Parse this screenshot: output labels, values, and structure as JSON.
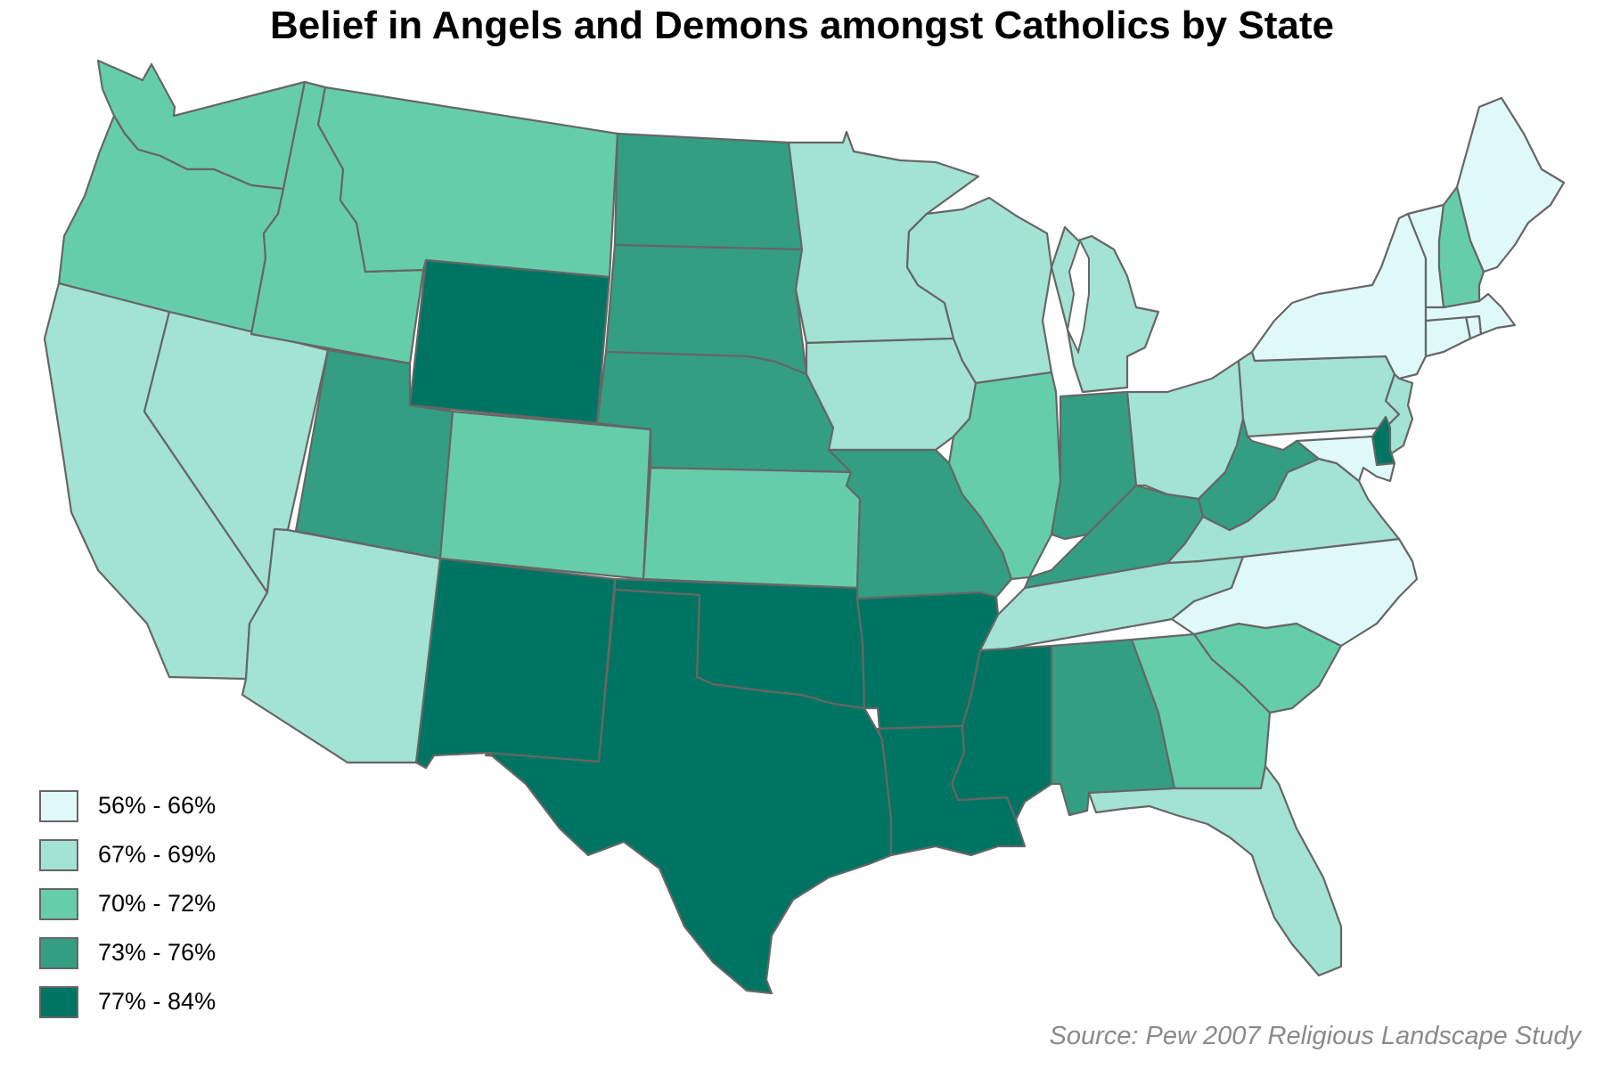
{
  "title": "Belief in Angels and Demons amongst Catholics by State",
  "source": "Source: Pew 2007 Religious Landscape Study",
  "legend": [
    {
      "label": "56% - 66%",
      "color": "#dff9f8"
    },
    {
      "label": "67% - 69%",
      "color": "#a3e3d3"
    },
    {
      "label": "70% - 72%",
      "color": "#66cdab"
    },
    {
      "label": "73% - 76%",
      "color": "#349e82"
    },
    {
      "label": "77% - 84%",
      "color": "#007462"
    }
  ],
  "states": [
    {
      "id": "WA",
      "bin": 2
    },
    {
      "id": "OR",
      "bin": 2
    },
    {
      "id": "CA",
      "bin": 1
    },
    {
      "id": "NV",
      "bin": 1
    },
    {
      "id": "ID",
      "bin": 2
    },
    {
      "id": "MT",
      "bin": 2
    },
    {
      "id": "WY",
      "bin": 4
    },
    {
      "id": "UT",
      "bin": 3
    },
    {
      "id": "CO",
      "bin": 2
    },
    {
      "id": "AZ",
      "bin": 1
    },
    {
      "id": "NM",
      "bin": 4
    },
    {
      "id": "ND",
      "bin": 3
    },
    {
      "id": "SD",
      "bin": 3
    },
    {
      "id": "NE",
      "bin": 3
    },
    {
      "id": "KS",
      "bin": 2
    },
    {
      "id": "OK",
      "bin": 4
    },
    {
      "id": "TX",
      "bin": 4
    },
    {
      "id": "MN",
      "bin": 1
    },
    {
      "id": "IA",
      "bin": 1
    },
    {
      "id": "MO",
      "bin": 3
    },
    {
      "id": "AR",
      "bin": 4
    },
    {
      "id": "LA",
      "bin": 4
    },
    {
      "id": "WI",
      "bin": 1
    },
    {
      "id": "IL",
      "bin": 2
    },
    {
      "id": "MI",
      "bin": 1
    },
    {
      "id": "IN",
      "bin": 3
    },
    {
      "id": "OH",
      "bin": 1
    },
    {
      "id": "KY",
      "bin": 3
    },
    {
      "id": "TN",
      "bin": 1
    },
    {
      "id": "MS",
      "bin": 4
    },
    {
      "id": "AL",
      "bin": 3
    },
    {
      "id": "GA",
      "bin": 2
    },
    {
      "id": "FL",
      "bin": 1
    },
    {
      "id": "SC",
      "bin": 2
    },
    {
      "id": "NC",
      "bin": 0
    },
    {
      "id": "VA",
      "bin": 1
    },
    {
      "id": "WV",
      "bin": 3
    },
    {
      "id": "PA",
      "bin": 1
    },
    {
      "id": "NY",
      "bin": 0
    },
    {
      "id": "NJ",
      "bin": 1
    },
    {
      "id": "DE",
      "bin": 4
    },
    {
      "id": "MD",
      "bin": 0
    },
    {
      "id": "CT",
      "bin": 0
    },
    {
      "id": "RI",
      "bin": 0
    },
    {
      "id": "MA",
      "bin": 0
    },
    {
      "id": "VT",
      "bin": 0
    },
    {
      "id": "NH",
      "bin": 2
    },
    {
      "id": "ME",
      "bin": 0
    }
  ]
}
